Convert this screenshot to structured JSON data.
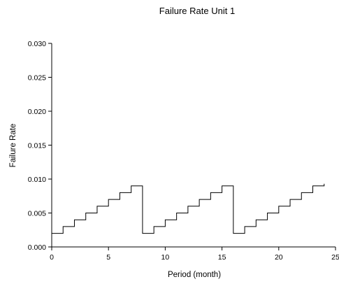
{
  "chart_data": {
    "type": "line",
    "title": "Failure Rate Unit 1",
    "xlabel": "Period (month)",
    "ylabel": "Failure Rate",
    "xlim": [
      0,
      25
    ],
    "ylim": [
      0,
      0.03
    ],
    "x_ticks": [
      0,
      5,
      10,
      15,
      20,
      25
    ],
    "x_tick_labels": [
      "0",
      "5",
      "10",
      "15",
      "20",
      "25"
    ],
    "y_ticks": [
      0,
      0.005,
      0.01,
      0.015,
      0.02,
      0.025,
      0.03
    ],
    "y_tick_labels": [
      "0.000",
      "0.005",
      "0.010",
      "0.015",
      "0.020",
      "0.025",
      "0.030"
    ],
    "grid": false,
    "legend": "none",
    "line_color": "#000000",
    "series": [
      {
        "step": "post",
        "x": [
          0,
          1,
          2,
          3,
          4,
          5,
          6,
          7,
          8,
          9,
          10,
          11,
          12,
          13,
          14,
          15,
          16,
          17,
          18,
          19,
          20,
          21,
          22,
          23,
          24
        ],
        "values": [
          0.002,
          0.003,
          0.004,
          0.005,
          0.006,
          0.007,
          0.008,
          0.009,
          0.002,
          0.003,
          0.004,
          0.005,
          0.006,
          0.007,
          0.008,
          0.009,
          0.002,
          0.003,
          0.004,
          0.005,
          0.006,
          0.007,
          0.008,
          0.009,
          0.0093
        ]
      }
    ]
  }
}
